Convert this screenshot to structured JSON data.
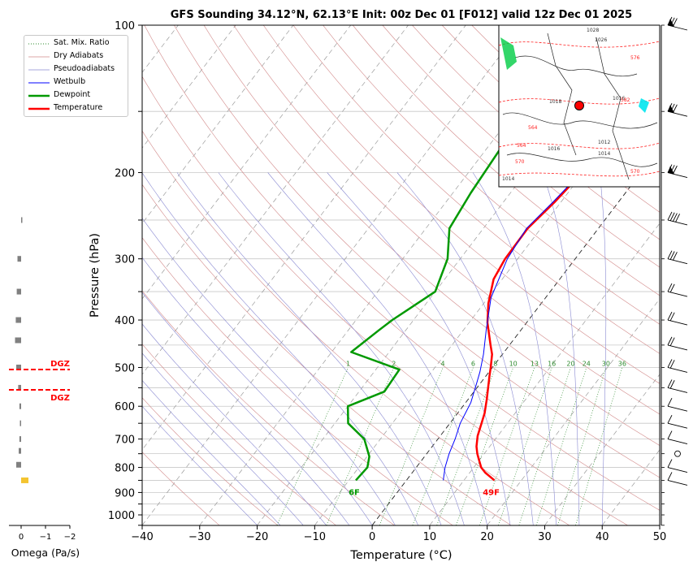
{
  "chart_data": {
    "type": "line",
    "title": "GFS Sounding 34.12°N, 62.13°E Init: 00z Dec 01 [F012] valid 12z Dec 01 2025",
    "xlabel": "Temperature (°C)",
    "ylabel": "Pressure (hPa)",
    "xlim": [
      -40,
      50
    ],
    "ylim": [
      1050,
      100
    ],
    "y_scale": "log",
    "x_ticks": [
      -40,
      -30,
      -20,
      -10,
      0,
      10,
      20,
      30,
      40,
      50
    ],
    "y_ticks": [
      100,
      200,
      300,
      400,
      500,
      600,
      700,
      800,
      900,
      1000
    ],
    "grid": true,
    "legend": {
      "position": "upper-left",
      "entries": [
        {
          "label": "Sat. Mix. Ratio",
          "color": "#2e8b2e",
          "style": "dotted"
        },
        {
          "label": "Dry Adiabats",
          "color": "#d28a8a",
          "style": "solid"
        },
        {
          "label": "Pseudoadiabats",
          "color": "#8a8ad2",
          "style": "solid"
        },
        {
          "label": "Wetbulb",
          "color": "#0000ff",
          "style": "solid"
        },
        {
          "label": "Dewpoint",
          "color": "#009900",
          "style": "solid"
        },
        {
          "label": "Temperature",
          "color": "#ff0000",
          "style": "solid"
        }
      ]
    },
    "series": [
      {
        "name": "Temperature",
        "color": "#ff0000",
        "points": [
          [
            15.3,
            850
          ],
          [
            12.7,
            820
          ],
          [
            11.3,
            800
          ],
          [
            9.8,
            770
          ],
          [
            8.8,
            750
          ],
          [
            7.7,
            725
          ],
          [
            6.5,
            690
          ],
          [
            5.5,
            650
          ],
          [
            4.7,
            620
          ],
          [
            3.2,
            580
          ],
          [
            0.6,
            520
          ],
          [
            -0.3,
            500
          ],
          [
            -1.8,
            470
          ],
          [
            -3.3,
            450
          ],
          [
            -6.8,
            405
          ],
          [
            -9.2,
            370
          ],
          [
            -11.5,
            330
          ],
          [
            -12.2,
            300
          ],
          [
            -12.3,
            260
          ],
          [
            -11.1,
            230
          ],
          [
            -10.2,
            200
          ],
          [
            -8.5,
            180
          ],
          [
            -5.5,
            150
          ],
          [
            -3.7,
            130
          ],
          [
            -2.6,
            118
          ],
          [
            -1.3,
            100
          ]
        ]
      },
      {
        "name": "Dewpoint",
        "color": "#009900",
        "points": [
          [
            -8.8,
            850
          ],
          [
            -8.5,
            800
          ],
          [
            -9.6,
            760
          ],
          [
            -12.8,
            700
          ],
          [
            -17.7,
            650
          ],
          [
            -20.0,
            600
          ],
          [
            -15.6,
            560
          ],
          [
            -15.9,
            505
          ],
          [
            -26.6,
            465
          ],
          [
            -24.7,
            420
          ],
          [
            -23.7,
            400
          ],
          [
            -20.0,
            350
          ],
          [
            -22.2,
            300
          ],
          [
            -25.9,
            260
          ],
          [
            -26.9,
            220
          ],
          [
            -28.2,
            150
          ],
          [
            -21.4,
            100
          ]
        ]
      },
      {
        "name": "Wetbulb",
        "color": "#0000ff",
        "points": [
          [
            6.4,
            850
          ],
          [
            5.0,
            800
          ],
          [
            3.9,
            750
          ],
          [
            3.0,
            700
          ],
          [
            1.8,
            650
          ],
          [
            0.9,
            590
          ],
          [
            -0.6,
            540
          ],
          [
            -1.6,
            510
          ],
          [
            -3.3,
            470
          ],
          [
            -6.0,
            420
          ],
          [
            -9.5,
            360
          ],
          [
            -11.8,
            300
          ],
          [
            -12.5,
            260
          ],
          [
            -11.4,
            230
          ],
          [
            -10.4,
            200
          ],
          [
            -8.6,
            180
          ],
          [
            -5.6,
            150
          ],
          [
            -3.7,
            130
          ],
          [
            -1.3,
            100
          ]
        ]
      }
    ],
    "annotations": {
      "dewpoint_label": "6F",
      "temperature_label": "49F",
      "mixing_ratio_labels": [
        "1",
        "2",
        "4",
        "6",
        "8",
        "10",
        "13",
        "16",
        "20",
        "24",
        "30",
        "36"
      ]
    }
  },
  "omega": {
    "xlabel": "Omega (Pa/s)",
    "x_ticks": [
      "0",
      "−1",
      "−2"
    ],
    "dgz_label": "DGZ",
    "dgz_color": "#ff0000",
    "bar_color": "#808080",
    "positive_color": "#f4c430"
  },
  "inset_map": {
    "isobar_labels": [
      "1028",
      "1026",
      "1018",
      "1014",
      "1012",
      "1014",
      "1016",
      "1016"
    ],
    "height_labels": [
      "564",
      "576",
      "570",
      "582",
      "564",
      "570"
    ],
    "marker_color": "#ff0000"
  }
}
